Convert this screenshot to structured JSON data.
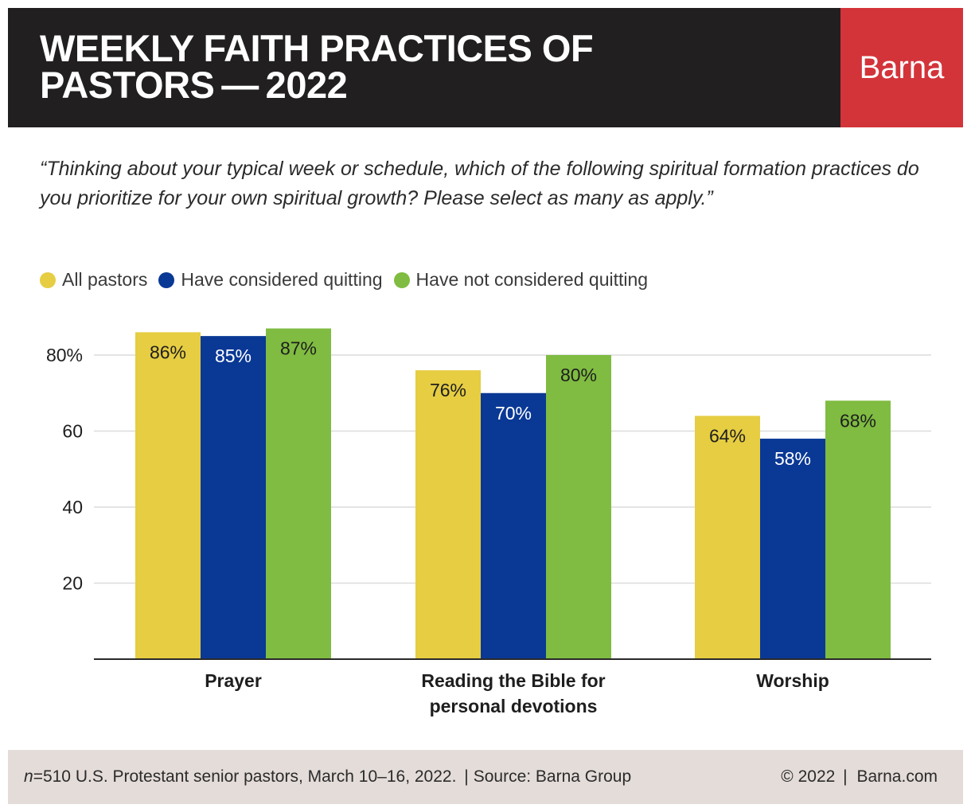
{
  "header": {
    "title_line1": "WEEKLY FAITH PRACTICES OF",
    "title_line2": "PASTORS — 2022",
    "brand": "Barna"
  },
  "question": "“Thinking about your typical week or schedule, which of the following spiritual formation practices do you prioritize for your own spiritual growth? Please select as many as apply.”",
  "legend": [
    {
      "label": "All pastors",
      "color": "#e6cd42"
    },
    {
      "label": "Have considered quitting",
      "color": "#0a3895"
    },
    {
      "label": "Have not considered quitting",
      "color": "#7fbc41"
    }
  ],
  "chart_data": {
    "type": "bar",
    "title": "WEEKLY FAITH PRACTICES OF PASTORS—2022",
    "categories": [
      [
        "Prayer"
      ],
      [
        "Reading the Bible for",
        "personal devotions"
      ],
      [
        "Worship"
      ]
    ],
    "series": [
      {
        "name": "All pastors",
        "color": "#e6cd42",
        "label_color": "#1e1e1e",
        "values": [
          86,
          76,
          64
        ]
      },
      {
        "name": "Have considered quitting",
        "color": "#0a3895",
        "label_color": "#ffffff",
        "values": [
          85,
          70,
          58
        ]
      },
      {
        "name": "Have not considered quitting",
        "color": "#7fbc41",
        "label_color": "#1e1e1e",
        "values": [
          87,
          80,
          68
        ]
      }
    ],
    "value_suffix": "%",
    "ylim": [
      0,
      80
    ],
    "yticks": [
      {
        "value": 80,
        "label": "80%"
      },
      {
        "value": 60,
        "label": "60"
      },
      {
        "value": 40,
        "label": "40"
      },
      {
        "value": 20,
        "label": "20"
      }
    ],
    "grid": true,
    "legend_position": "top-left",
    "xlabel": "",
    "ylabel": ""
  },
  "footer": {
    "n_label": "n",
    "sample": "=510 U.S. Protestant senior pastors, March 10–16, 2022.",
    "source": "Source: Barna Group",
    "copyright": "© 2022",
    "website": "Barna.com"
  }
}
